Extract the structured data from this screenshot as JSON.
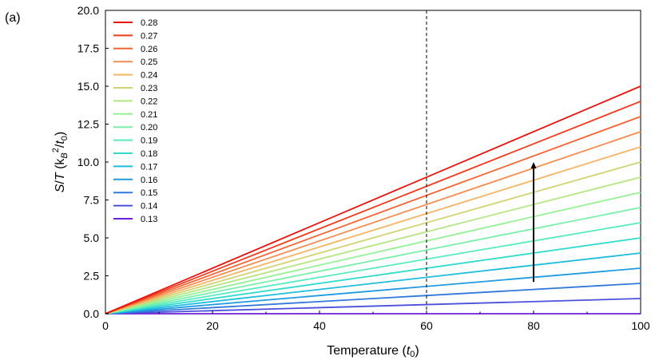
{
  "panel_label": "(a)",
  "chart_data": {
    "type": "line",
    "title": "",
    "xlabel": "Temperature (t0)",
    "ylabel": "S/T (kB^2/t0)",
    "xlim": [
      0,
      100
    ],
    "ylim": [
      0,
      20
    ],
    "x_ticks": [
      0,
      20,
      40,
      60,
      80,
      100
    ],
    "x_tick_labels": [
      "0",
      "20",
      "40",
      "60",
      "80",
      "100"
    ],
    "y_ticks": [
      0,
      2.5,
      5,
      7.5,
      10,
      12.5,
      15,
      17.5,
      20
    ],
    "y_tick_labels": [
      "0.0",
      "2.5",
      "5.0",
      "7.5",
      "10.0",
      "12.5",
      "15.0",
      "17.5",
      "20.0"
    ],
    "grid": false,
    "legend_position": "top-left",
    "vertical_reference_line_x": 60,
    "arrow": {
      "x": 80,
      "y_from": 2.1,
      "y_to": 10.0,
      "direction": "up"
    },
    "series": [
      {
        "name": "0.28",
        "color": "#e6140f",
        "x": [
          0,
          100
        ],
        "values": [
          0,
          15.0
        ]
      },
      {
        "name": "0.27",
        "color": "#f03c1e",
        "x": [
          0,
          100
        ],
        "values": [
          0,
          14.0
        ]
      },
      {
        "name": "0.26",
        "color": "#f56432",
        "x": [
          0,
          100
        ],
        "values": [
          0,
          13.0
        ]
      },
      {
        "name": "0.25",
        "color": "#f58c50",
        "x": [
          0,
          100
        ],
        "values": [
          0,
          12.0
        ]
      },
      {
        "name": "0.24",
        "color": "#f5b464",
        "x": [
          0,
          100
        ],
        "values": [
          0,
          11.0
        ]
      },
      {
        "name": "0.23",
        "color": "#d2d273",
        "x": [
          0,
          100
        ],
        "values": [
          0,
          10.0
        ]
      },
      {
        "name": "0.22",
        "color": "#b4e682",
        "x": [
          0,
          100
        ],
        "values": [
          0,
          9.0
        ]
      },
      {
        "name": "0.21",
        "color": "#96f096",
        "x": [
          0,
          100
        ],
        "values": [
          0,
          8.0
        ]
      },
      {
        "name": "0.20",
        "color": "#78f0aa",
        "x": [
          0,
          100
        ],
        "values": [
          0,
          7.0
        ]
      },
      {
        "name": "0.19",
        "color": "#55ebbe",
        "x": [
          0,
          100
        ],
        "values": [
          0,
          6.0
        ]
      },
      {
        "name": "0.18",
        "color": "#32dccd",
        "x": [
          0,
          100
        ],
        "values": [
          0,
          5.0
        ]
      },
      {
        "name": "0.17",
        "color": "#1ebedc",
        "x": [
          0,
          100
        ],
        "values": [
          0,
          4.0
        ]
      },
      {
        "name": "0.16",
        "color": "#1e9be1",
        "x": [
          0,
          100
        ],
        "values": [
          0,
          3.0
        ]
      },
      {
        "name": "0.15",
        "color": "#3278dc",
        "x": [
          0,
          100
        ],
        "values": [
          0,
          2.0
        ]
      },
      {
        "name": "0.14",
        "color": "#4b50dc",
        "x": [
          0,
          100
        ],
        "values": [
          0,
          1.0
        ]
      },
      {
        "name": "0.13",
        "color": "#6e1ed7",
        "x": [
          0,
          100
        ],
        "values": [
          0,
          0.0
        ]
      }
    ]
  }
}
